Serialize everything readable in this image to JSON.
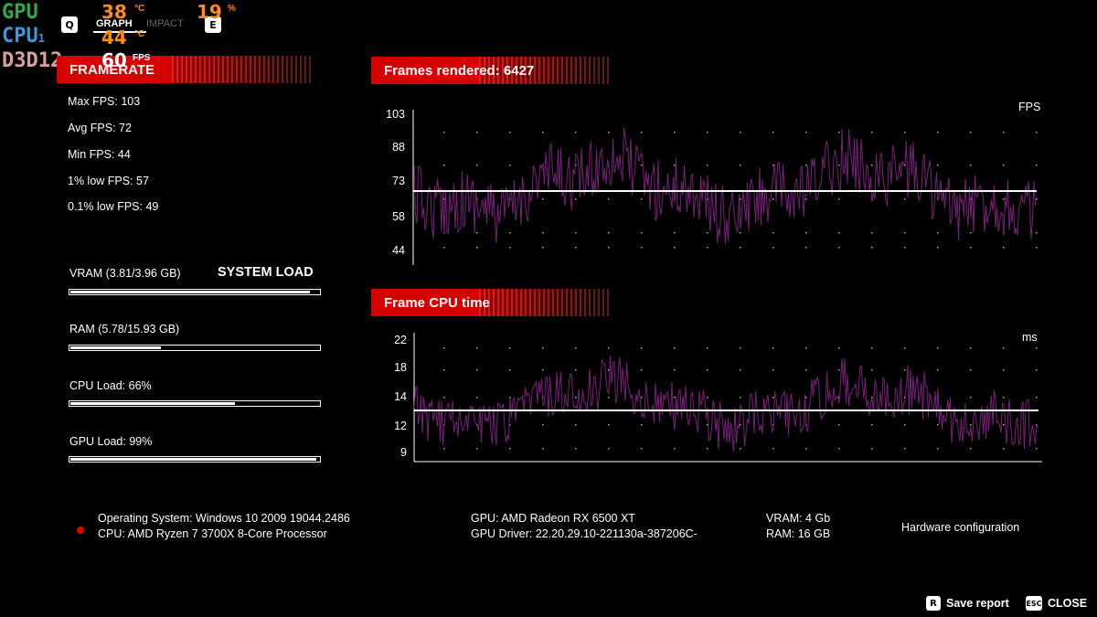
{
  "overlay": {
    "gpu_label": "GPU",
    "cpu_label": "CPU",
    "cpu_sub": "1",
    "api_label": "D3D12",
    "gpu_temp": "38",
    "temp_unit": "°C",
    "gpu_usage": "19",
    "usage_unit": "%",
    "cpu_temp": "44",
    "fps": "60",
    "fps_unit": "FPS",
    "key_q": "Q",
    "key_e": "E",
    "graph_label": "GRAPH",
    "impact_label": "IMPACT",
    "colors": {
      "gpu": "#2fa84f",
      "cpu": "#3a9ad9",
      "api": "#d9a0a0",
      "value": "#ff8c1a"
    }
  },
  "framerate": {
    "title": "FRAMERATE",
    "stats": [
      "Max FPS: 103",
      "Avg FPS: 72",
      "Min FPS: 44",
      "1% low FPS: 57",
      "0.1% low FPS: 49"
    ]
  },
  "system_load": {
    "title": "SYSTEM LOAD",
    "items": [
      {
        "label": "VRAM (3.81/3.96 GB)",
        "fraction": 0.962
      },
      {
        "label": "RAM (5.78/15.93 GB)",
        "fraction": 0.363
      },
      {
        "label": "CPU Load: 66%",
        "fraction": 0.66
      },
      {
        "label": "GPU Load: 99%",
        "fraction": 0.99
      }
    ]
  },
  "fps_chart": {
    "title": "Frames rendered: 6427",
    "unit": "FPS",
    "y_ticks": [
      "103",
      "88",
      "73",
      "58",
      "44"
    ]
  },
  "cpu_chart": {
    "title": "Frame CPU time",
    "unit": "ms",
    "y_ticks": [
      "22",
      "18",
      "14",
      "12",
      "9"
    ]
  },
  "hardware": {
    "os": "Operating System: Windows 10 2009 19044.2486",
    "cpu": "CPU: AMD Ryzen 7 3700X 8-Core Processor",
    "gpu": "GPU: AMD Radeon RX 6500 XT",
    "gpu_driver": "GPU Driver: 22.20.29.10-221130a-387206C-",
    "vram": "VRAM: 4 Gb",
    "ram": "RAM: 16 GB",
    "title": "Hardware configuration"
  },
  "actions": {
    "save_key": "R",
    "save_label": "Save report",
    "close_key": "ESC",
    "close_label": "CLOSE"
  },
  "colors": {
    "banner": "#d50000",
    "trace": "#7a1f7a",
    "indicator": "#e00000"
  }
}
